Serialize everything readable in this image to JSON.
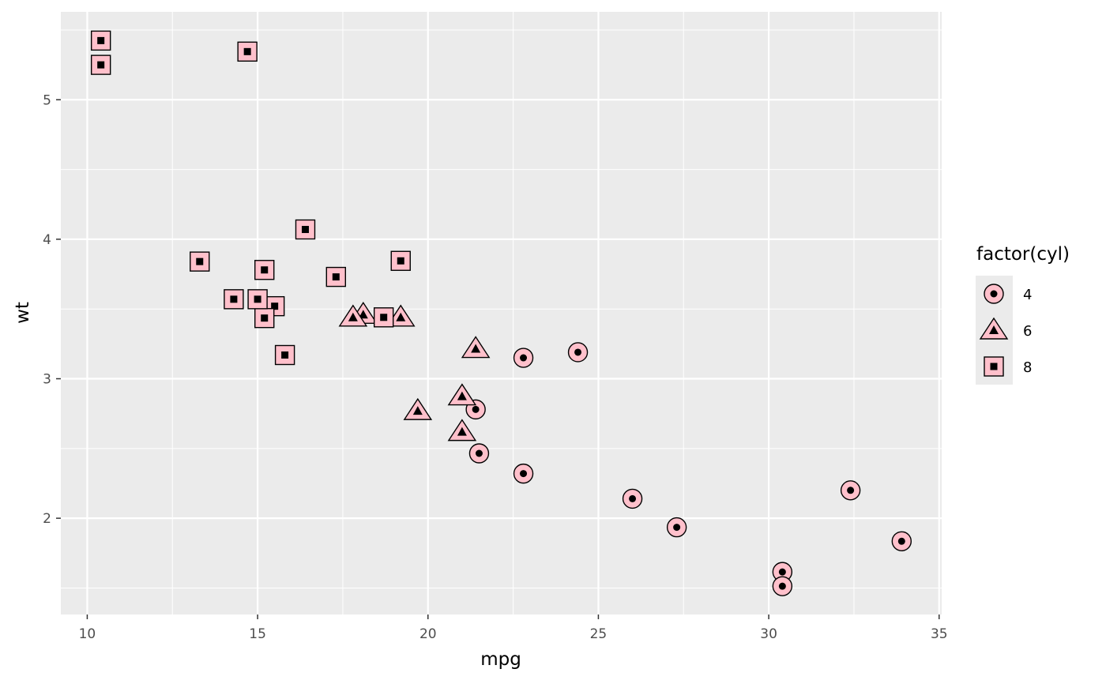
{
  "chart_data": {
    "type": "scatter",
    "title": "",
    "xlabel": "mpg",
    "ylabel": "wt",
    "xlim": [
      9.225,
      35.075
    ],
    "ylim": [
      1.31,
      5.63
    ],
    "x_ticks": [
      10,
      15,
      20,
      25,
      30,
      35
    ],
    "y_ticks": [
      2,
      3,
      4,
      5
    ],
    "x_tick_labels": [
      "10",
      "15",
      "20",
      "25",
      "30",
      "35"
    ],
    "y_tick_labels": [
      "2",
      "3",
      "4",
      "5"
    ],
    "grid": true,
    "legend": {
      "title": "factor(cyl)",
      "position": "right",
      "entries": [
        {
          "label": "4",
          "shape": "circle"
        },
        {
          "label": "6",
          "shape": "triangle"
        },
        {
          "label": "8",
          "shape": "square"
        }
      ]
    },
    "series": [
      {
        "name": "4",
        "shape": "circle",
        "points": [
          [
            22.8,
            2.32
          ],
          [
            24.4,
            3.19
          ],
          [
            22.8,
            3.15
          ],
          [
            32.4,
            2.2
          ],
          [
            30.4,
            1.615
          ],
          [
            33.9,
            1.835
          ],
          [
            21.5,
            2.465
          ],
          [
            27.3,
            1.935
          ],
          [
            26.0,
            2.14
          ],
          [
            30.4,
            1.513
          ],
          [
            21.4,
            2.78
          ]
        ]
      },
      {
        "name": "6",
        "shape": "triangle",
        "points": [
          [
            21.0,
            2.62
          ],
          [
            21.0,
            2.875
          ],
          [
            21.4,
            3.215
          ],
          [
            18.1,
            3.46
          ],
          [
            19.2,
            3.44
          ],
          [
            17.8,
            3.44
          ],
          [
            19.7,
            2.77
          ]
        ]
      },
      {
        "name": "8",
        "shape": "square",
        "points": [
          [
            18.7,
            3.44
          ],
          [
            14.3,
            3.57
          ],
          [
            16.4,
            4.07
          ],
          [
            17.3,
            3.73
          ],
          [
            15.2,
            3.78
          ],
          [
            10.4,
            5.25
          ],
          [
            10.4,
            5.424
          ],
          [
            14.7,
            5.345
          ],
          [
            15.5,
            3.52
          ],
          [
            15.2,
            3.435
          ],
          [
            13.3,
            3.84
          ],
          [
            19.2,
            3.845
          ],
          [
            15.8,
            3.17
          ],
          [
            15.0,
            3.57
          ]
        ]
      }
    ]
  },
  "colors": {
    "panel_background": "#ebebeb",
    "grid_major": "#ffffff",
    "point_fill": "#ffc0cb",
    "point_outline": "#000000",
    "tick_text": "#4d4d4d",
    "tick_mark": "#333333"
  }
}
